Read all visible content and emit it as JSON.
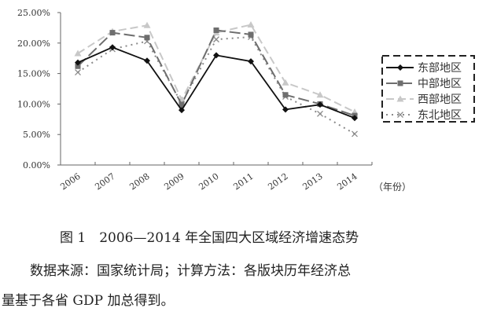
{
  "chart_data": {
    "type": "line",
    "categories": [
      "2006",
      "2007",
      "2008",
      "2009",
      "2010",
      "2011",
      "2012",
      "2013",
      "2014"
    ],
    "xlabel": "（年份）",
    "ylabel": "",
    "ylim": [
      0,
      25
    ],
    "yticks": [
      "0.00%",
      "5.00%",
      "10.00%",
      "15.00%",
      "20.00%",
      "25.00%"
    ],
    "ytick_values": [
      0,
      5,
      10,
      15,
      20,
      25
    ],
    "grid": false,
    "legend_position": "right",
    "series": [
      {
        "name": "东部地区",
        "values": [
          16.8,
          19.3,
          17.1,
          9.0,
          18.0,
          17.0,
          9.1,
          9.9,
          7.7
        ],
        "color": "#111111",
        "marker": "diamond",
        "dash": ""
      },
      {
        "name": "中部地区",
        "values": [
          16.2,
          21.7,
          20.9,
          9.9,
          22.1,
          21.4,
          11.5,
          10.0,
          8.1
        ],
        "color": "#6e6e6e",
        "marker": "square",
        "dash": "14 5"
      },
      {
        "name": "西部地区",
        "values": [
          18.3,
          21.9,
          22.9,
          10.7,
          21.7,
          23.0,
          13.5,
          11.5,
          8.7
        ],
        "color": "#c8c8c8",
        "marker": "triangle",
        "dash": "10 5"
      },
      {
        "name": "东北地区",
        "values": [
          15.2,
          19.0,
          20.3,
          10.1,
          20.6,
          21.0,
          11.2,
          8.4,
          5.1
        ],
        "color": "#8a8a8a",
        "marker": "x",
        "dash": "2 5"
      }
    ]
  },
  "caption": "图 1　2006—2014 年全国四大区域经济增速态势",
  "source_line1": "数据来源：国家统计局；计算方法：各版块历年经济总",
  "source_line2": "量基于各省 GDP 加总得到。"
}
